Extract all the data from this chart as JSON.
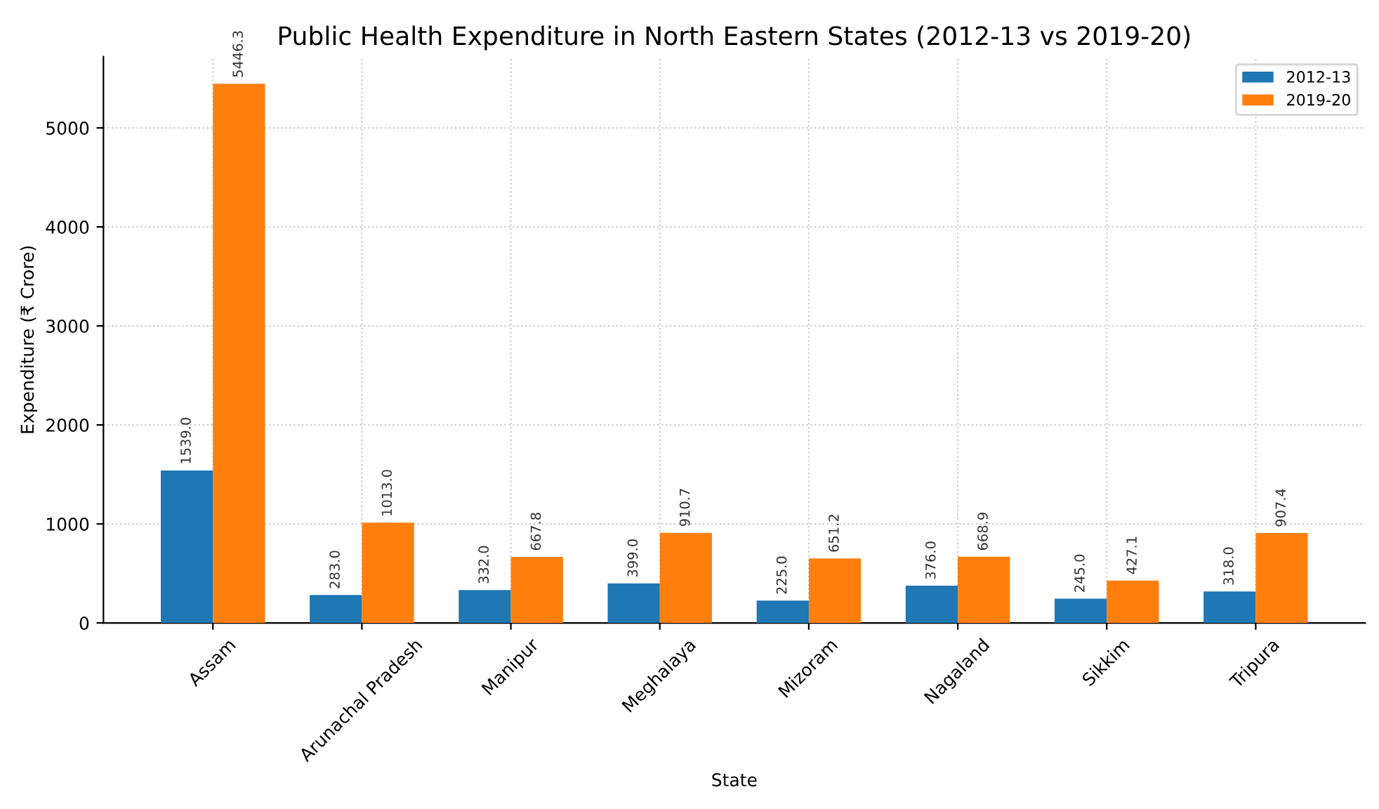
{
  "chart_data": {
    "type": "bar",
    "title": "Public Health Expenditure in North Eastern States (2012-13 vs 2019-20)",
    "xlabel": "State",
    "ylabel": "Expenditure (₹ Crore)",
    "categories": [
      "Assam",
      "Arunachal Pradesh",
      "Manipur",
      "Meghalaya",
      "Mizoram",
      "Nagaland",
      "Sikkim",
      "Tripura"
    ],
    "series": [
      {
        "name": "2012-13",
        "color": "#1f77b4",
        "values": [
          1539,
          283,
          332,
          399,
          225,
          376,
          245,
          318
        ],
        "value_labels": [
          "1539.0",
          "283.0",
          "332.0",
          "399.0",
          "225.0",
          "376.0",
          "245.0",
          "318.0"
        ]
      },
      {
        "name": "2019-20",
        "color": "#ff7f0e",
        "values": [
          5446.3,
          1013,
          667.8,
          910.7,
          651.2,
          668.9,
          427.1,
          907.4
        ],
        "value_labels": [
          "5446.3",
          "1013.0",
          "667.8",
          "910.7",
          "651.2",
          "668.9",
          "427.1",
          "907.4"
        ]
      }
    ],
    "ylim": [
      0,
      5720
    ],
    "yticks": [
      0,
      1000,
      2000,
      3000,
      4000,
      5000
    ],
    "grid": true,
    "legend": "top right"
  }
}
